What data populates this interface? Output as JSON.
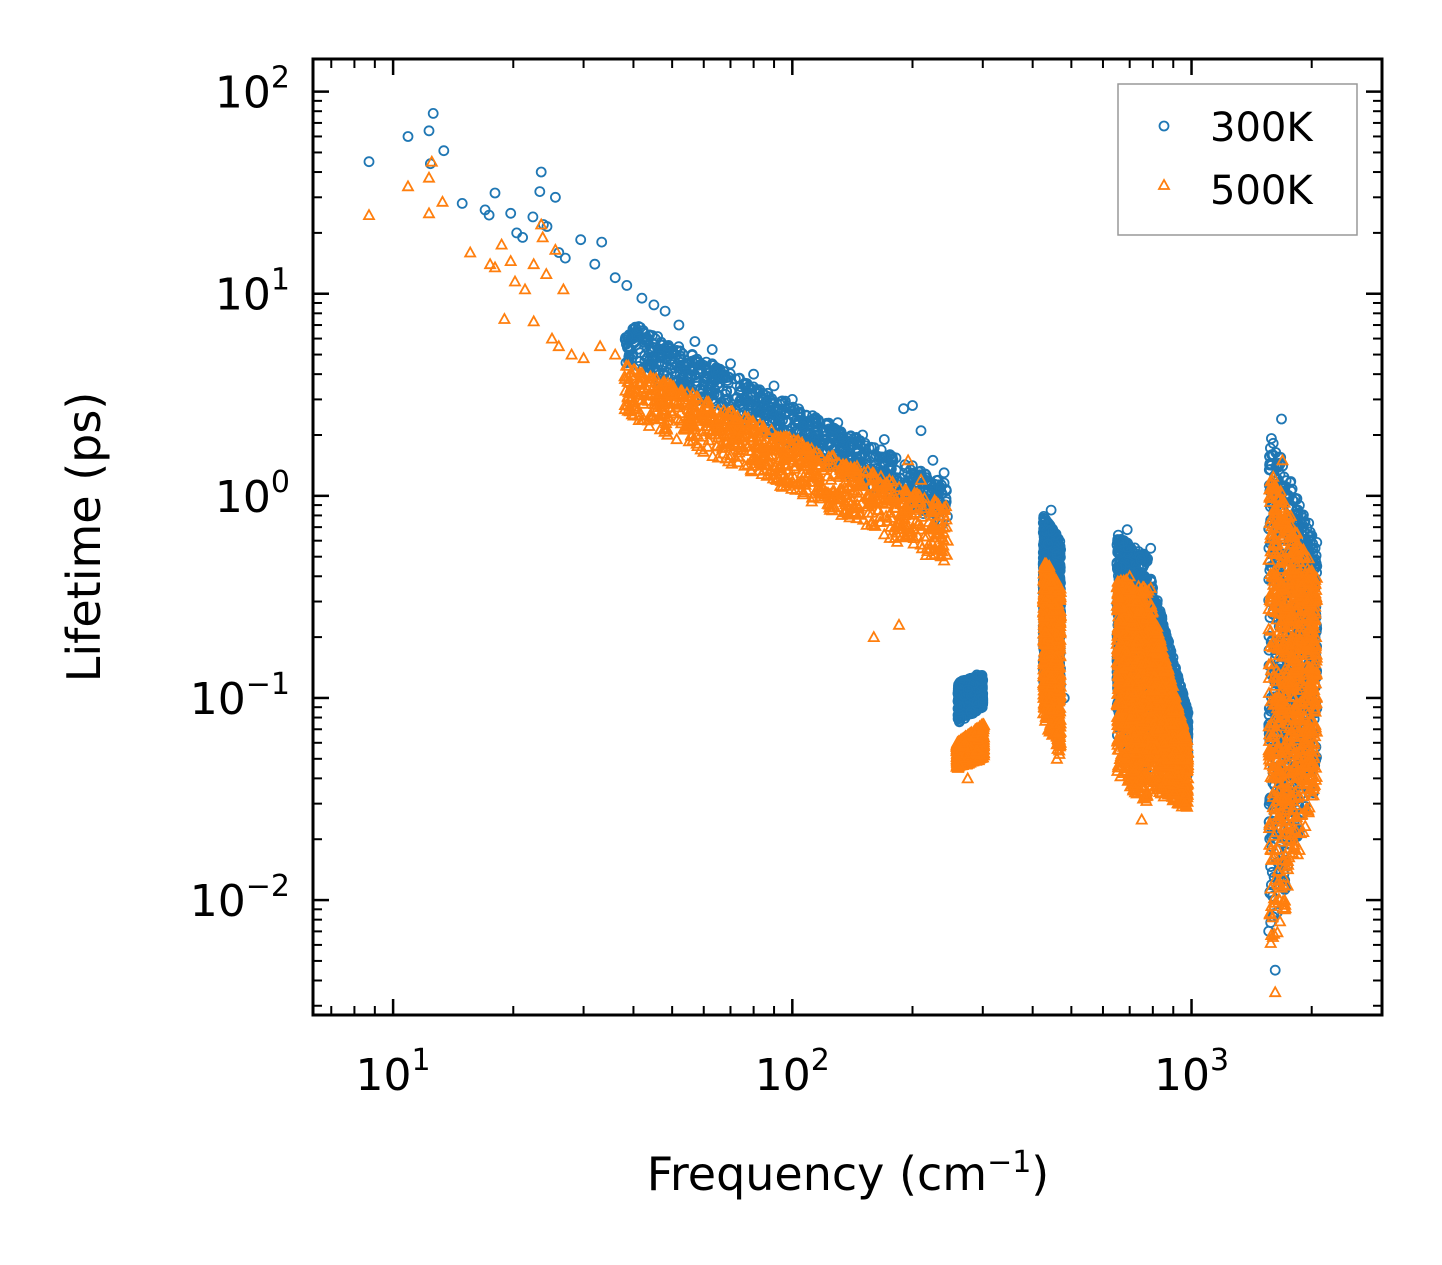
{
  "chart_data": {
    "type": "scatter",
    "title": "",
    "xlabel": "Frequency (cm⁻¹)",
    "xlabel_base": "Frequency (cm",
    "xlabel_sup": "−1",
    "xlabel_end": ")",
    "ylabel": "Lifetime (ps)",
    "xscale": "log",
    "yscale": "log",
    "xlim": [
      6.3,
      3000
    ],
    "ylim": [
      0.0027,
      145
    ],
    "legend_position": "top-right",
    "grid": false,
    "x_tick_labels": [
      {
        "base": "10",
        "exp": "1",
        "value": 10
      },
      {
        "base": "10",
        "exp": "2",
        "value": 100
      },
      {
        "base": "10",
        "exp": "3",
        "value": 1000
      }
    ],
    "y_tick_labels": [
      {
        "base": "10",
        "exp": "−2",
        "value": 0.01
      },
      {
        "base": "10",
        "exp": "−1",
        "value": 0.1
      },
      {
        "base": "10",
        "exp": "0",
        "value": 1
      },
      {
        "base": "10",
        "exp": "1",
        "value": 10
      },
      {
        "base": "10",
        "exp": "2",
        "value": 100
      }
    ],
    "series": [
      {
        "name": "300K",
        "color": "#1f77b4",
        "marker": "circle",
        "points": [
          [
            8.7,
            45
          ],
          [
            10.9,
            60
          ],
          [
            12.3,
            64
          ],
          [
            12.6,
            78
          ],
          [
            12.4,
            44
          ],
          [
            13.4,
            51
          ],
          [
            14.9,
            28
          ],
          [
            17,
            26
          ],
          [
            17.4,
            24.5
          ],
          [
            18,
            31.5
          ],
          [
            19.7,
            25
          ],
          [
            20.4,
            20
          ],
          [
            21.1,
            19
          ],
          [
            22.4,
            24
          ],
          [
            23.3,
            32
          ],
          [
            23.5,
            40
          ],
          [
            23.8,
            22
          ],
          [
            24.3,
            21.5
          ],
          [
            25.5,
            30
          ],
          [
            26,
            16
          ],
          [
            27,
            15
          ],
          [
            29.5,
            18.5
          ],
          [
            32,
            14
          ],
          [
            33.3,
            18
          ],
          [
            36,
            12
          ],
          [
            38.5,
            11
          ],
          [
            42,
            9.5
          ],
          [
            45,
            8.8
          ],
          [
            48,
            8.2
          ],
          [
            52,
            7
          ],
          [
            57,
            5.8
          ],
          [
            63,
            5.3
          ],
          [
            70,
            4.5
          ],
          [
            80,
            4
          ],
          [
            90,
            3.5
          ],
          [
            100,
            3
          ],
          [
            115,
            2.4
          ],
          [
            130,
            2.3
          ],
          [
            150,
            2
          ],
          [
            170,
            1.9
          ],
          [
            190,
            2.7
          ],
          [
            200,
            2.8
          ],
          [
            210,
            2.1
          ],
          [
            225,
            1.5
          ],
          [
            240,
            1.3
          ],
          [
            262,
            0.08
          ],
          [
            275,
            0.11
          ],
          [
            290,
            0.13
          ],
          [
            300,
            0.095
          ],
          [
            430,
            0.38
          ],
          [
            445,
            0.85
          ],
          [
            460,
            0.3
          ],
          [
            480,
            0.1
          ],
          [
            690,
            0.68
          ],
          [
            740,
            0.22
          ],
          [
            790,
            0.55
          ],
          [
            850,
            0.16
          ],
          [
            930,
            0.085
          ],
          [
            970,
            0.08
          ],
          [
            1580,
            0.58
          ],
          [
            1620,
            0.0045
          ],
          [
            1680,
            2.4
          ],
          [
            1700,
            0.06
          ],
          [
            1800,
            0.07
          ],
          [
            1900,
            0.78
          ],
          [
            1950,
            0.36
          ],
          [
            2010,
            0.045
          ],
          [
            2050,
            0.25
          ],
          [
            2020,
            0.034
          ]
        ],
        "bands": [
          {
            "x": [
              38,
              245
            ],
            "y_top": [
              7.5,
              1.15
            ],
            "y_bottom": [
              4.5,
              0.7
            ]
          },
          {
            "x": [
              260,
              300
            ],
            "y_top": [
              0.12,
              0.13
            ],
            "y_bottom": [
              0.075,
              0.09
            ]
          },
          {
            "x": [
              425,
              470
            ],
            "y_top": [
              0.8,
              0.6
            ],
            "y_bottom": [
              0.12,
              0.08
            ]
          },
          {
            "x": [
              650,
              780
            ],
            "y_top": [
              0.65,
              0.5
            ],
            "y_bottom": [
              0.06,
              0.04
            ]
          },
          {
            "x": [
              790,
              980
            ],
            "y_top": [
              0.4,
              0.085
            ],
            "y_bottom": [
              0.05,
              0.04
            ]
          },
          {
            "x": [
              1560,
              2060
            ],
            "y_top": [
              2.2,
              0.6
            ],
            "y_bottom": [
              0.005,
              0.05
            ]
          }
        ]
      },
      {
        "name": "500K",
        "color": "#ff7f0e",
        "marker": "triangle",
        "points": [
          [
            8.7,
            24.5
          ],
          [
            10.9,
            34
          ],
          [
            12.3,
            37.5
          ],
          [
            12.5,
            45
          ],
          [
            12.3,
            25
          ],
          [
            13.3,
            28.5
          ],
          [
            15.6,
            16
          ],
          [
            17.5,
            14
          ],
          [
            18,
            13.5
          ],
          [
            18.7,
            17.5
          ],
          [
            19.7,
            14.5
          ],
          [
            20.2,
            11.5
          ],
          [
            21.4,
            10.5
          ],
          [
            22.5,
            14
          ],
          [
            23.5,
            22
          ],
          [
            23.7,
            19
          ],
          [
            24.2,
            12.5
          ],
          [
            25.5,
            16.5
          ],
          [
            26.7,
            10.5
          ],
          [
            19,
            7.5
          ],
          [
            22.5,
            7.3
          ],
          [
            25,
            6
          ],
          [
            26,
            5.5
          ],
          [
            28,
            5
          ],
          [
            30,
            4.8
          ],
          [
            33,
            5.5
          ],
          [
            36,
            5
          ],
          [
            40,
            4.2
          ],
          [
            44,
            3.8
          ],
          [
            50,
            3.2
          ],
          [
            55,
            2.8
          ],
          [
            60,
            2.6
          ],
          [
            66,
            2.4
          ],
          [
            75,
            2.1
          ],
          [
            85,
            1.8
          ],
          [
            95,
            1.5
          ],
          [
            110,
            1.3
          ],
          [
            125,
            1.2
          ],
          [
            140,
            1.1
          ],
          [
            155,
            1.0
          ],
          [
            160,
            0.2
          ],
          [
            175,
            1.2
          ],
          [
            185,
            0.23
          ],
          [
            195,
            1.5
          ],
          [
            210,
            1.2
          ],
          [
            225,
            0.8
          ],
          [
            245,
            0.6
          ],
          [
            260,
            0.045
          ],
          [
            275,
            0.04
          ],
          [
            290,
            0.055
          ],
          [
            300,
            0.07
          ],
          [
            440,
            0.45
          ],
          [
            460,
            0.05
          ],
          [
            470,
            0.06
          ],
          [
            700,
            0.4
          ],
          [
            750,
            0.025
          ],
          [
            790,
            0.35
          ],
          [
            850,
            0.06
          ],
          [
            960,
            0.03
          ],
          [
            980,
            0.04
          ],
          [
            1580,
            0.3
          ],
          [
            1620,
            0.0035
          ],
          [
            1690,
            1.5
          ],
          [
            1750,
            0.7
          ],
          [
            1850,
            0.05
          ],
          [
            1950,
            0.3
          ],
          [
            2020,
            0.033
          ],
          [
            2050,
            0.2
          ]
        ],
        "bands": [
          {
            "x": [
              38,
              245
            ],
            "y_top": [
              4.5,
              0.9
            ],
            "y_bottom": [
              2.5,
              0.45
            ]
          },
          {
            "x": [
              258,
              302
            ],
            "y_top": [
              0.06,
              0.075
            ],
            "y_bottom": [
              0.045,
              0.05
            ]
          },
          {
            "x": [
              425,
              470
            ],
            "y_top": [
              0.5,
              0.35
            ],
            "y_bottom": [
              0.08,
              0.05
            ]
          },
          {
            "x": [
              650,
              780
            ],
            "y_top": [
              0.4,
              0.35
            ],
            "y_bottom": [
              0.04,
              0.028
            ]
          },
          {
            "x": [
              790,
              980
            ],
            "y_top": [
              0.3,
              0.06
            ],
            "y_bottom": [
              0.035,
              0.028
            ]
          },
          {
            "x": [
              1560,
              2060
            ],
            "y_top": [
              1.5,
              0.4
            ],
            "y_bottom": [
              0.004,
              0.04
            ]
          }
        ]
      }
    ]
  }
}
